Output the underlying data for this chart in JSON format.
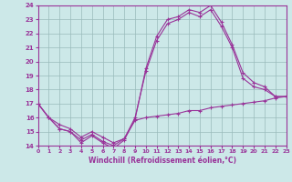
{
  "xlabel": "Windchill (Refroidissement éolien,°C)",
  "ylim": [
    14,
    24
  ],
  "xlim": [
    0,
    23
  ],
  "yticks": [
    14,
    15,
    16,
    17,
    18,
    19,
    20,
    21,
    22,
    23,
    24
  ],
  "xticks": [
    0,
    1,
    2,
    3,
    4,
    5,
    6,
    7,
    8,
    9,
    10,
    11,
    12,
    13,
    14,
    15,
    16,
    17,
    18,
    19,
    20,
    21,
    22,
    23
  ],
  "bg_color": "#cce8e8",
  "line_color": "#993399",
  "grid_color": "#99bbbb",
  "x": [
    0,
    1,
    2,
    3,
    4,
    5,
    6,
    7,
    8,
    9,
    10,
    11,
    12,
    13,
    14,
    15,
    16,
    17,
    18,
    19,
    20,
    21,
    22,
    23
  ],
  "y_top": [
    17.0,
    16.0,
    15.2,
    15.0,
    14.2,
    14.7,
    14.2,
    13.8,
    14.4,
    15.9,
    19.5,
    21.8,
    23.0,
    23.2,
    23.7,
    23.5,
    24.0,
    22.8,
    21.2,
    19.2,
    18.5,
    18.2,
    17.5,
    17.5
  ],
  "y_mid": [
    17.0,
    16.0,
    15.2,
    15.0,
    14.4,
    14.8,
    14.3,
    14.0,
    14.5,
    16.0,
    19.3,
    21.5,
    22.7,
    23.0,
    23.5,
    23.2,
    23.7,
    22.5,
    21.0,
    18.8,
    18.2,
    18.0,
    17.5,
    17.5
  ],
  "y_bot": [
    17.0,
    16.0,
    15.5,
    15.2,
    14.6,
    15.0,
    14.6,
    14.2,
    14.5,
    15.8,
    16.0,
    16.1,
    16.2,
    16.3,
    16.5,
    16.5,
    16.7,
    16.8,
    16.9,
    17.0,
    17.1,
    17.2,
    17.4,
    17.5
  ],
  "figwidth": 3.2,
  "figheight": 2.0,
  "dpi": 100
}
